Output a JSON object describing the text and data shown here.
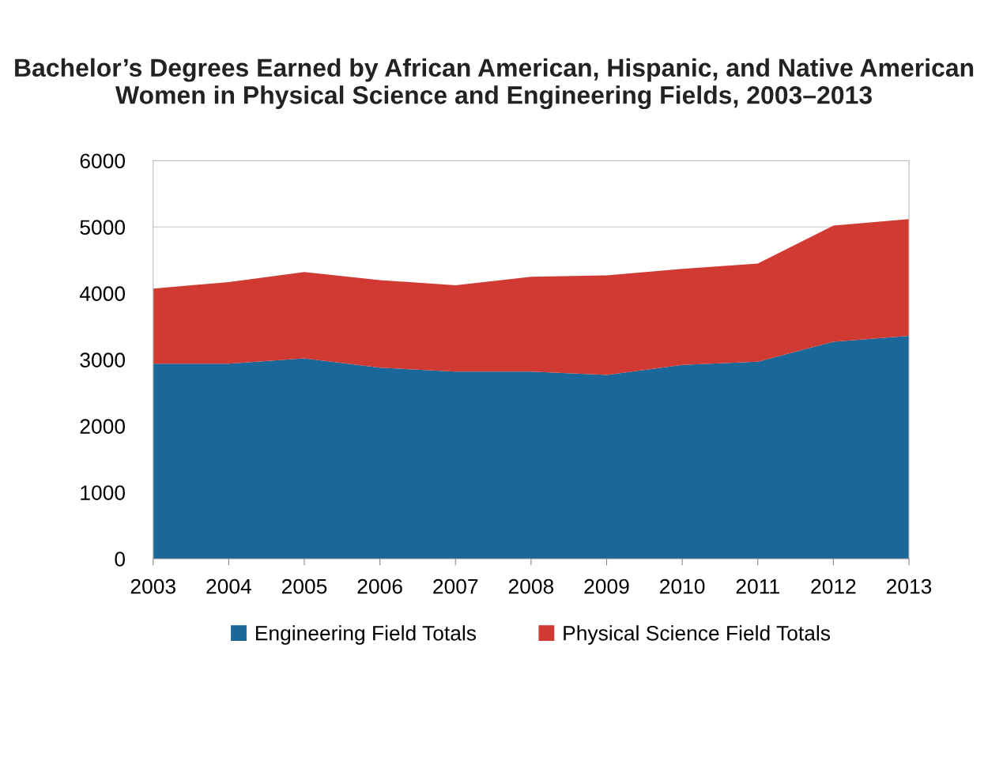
{
  "chart_data": {
    "type": "area",
    "stacked": true,
    "title": "Bachelor’s Degrees Earned by African American, Hispanic, and Native American Women in Physical Science and Engineering Fields, 2003–2013",
    "x": [
      2003,
      2004,
      2005,
      2006,
      2007,
      2008,
      2009,
      2010,
      2011,
      2012,
      2013
    ],
    "series": [
      {
        "name": "Engineering Field Totals",
        "color": "#1a6899",
        "values": [
          2940,
          2940,
          3020,
          2880,
          2820,
          2820,
          2770,
          2920,
          2970,
          3270,
          3360
        ]
      },
      {
        "name": "Physical Science Field Totals",
        "color": "#d03a33",
        "values": [
          1130,
          1230,
          1300,
          1320,
          1300,
          1430,
          1500,
          1450,
          1480,
          1750,
          1760
        ]
      }
    ],
    "xlim": [
      2003,
      2013
    ],
    "xticks": [
      2003,
      2004,
      2005,
      2006,
      2007,
      2008,
      2009,
      2010,
      2011,
      2012,
      2013
    ],
    "ylim": [
      0,
      6000
    ],
    "yticks": [
      0,
      1000,
      2000,
      3000,
      4000,
      5000,
      6000
    ],
    "grid": "y",
    "legend": "bottom"
  }
}
